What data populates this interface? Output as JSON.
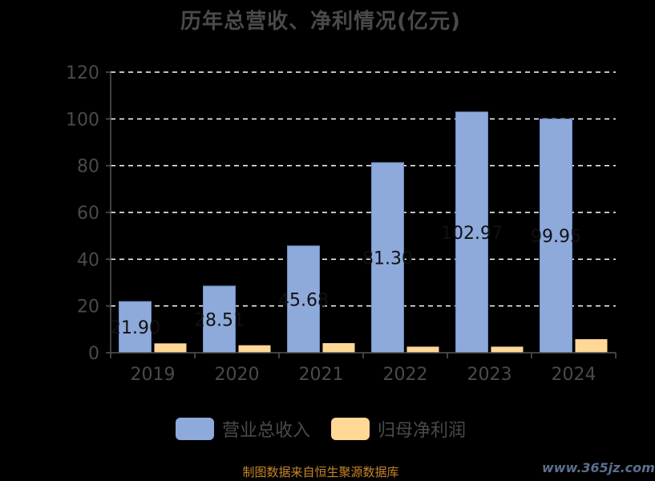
{
  "chart_data": {
    "type": "bar",
    "title": "历年总营收、净利情况(亿元)",
    "categories": [
      "2019",
      "2020",
      "2021",
      "2022",
      "2023",
      "2024"
    ],
    "series": [
      {
        "name": "营业总收入",
        "color": "#8eaadb",
        "values": [
          21.9,
          28.51,
          45.68,
          81.3,
          102.97,
          99.95
        ],
        "labels": [
          "21.90",
          "28.51",
          "45.68",
          "81.30",
          "102.97",
          "99.95"
        ]
      },
      {
        "name": "归母净利润",
        "color": "#ffd896",
        "values": [
          4.0,
          3.2,
          4.1,
          2.6,
          2.6,
          5.8
        ]
      }
    ],
    "yticks": [
      "0",
      "20",
      "40",
      "60",
      "80",
      "100",
      "120"
    ],
    "ylim": [
      0,
      120
    ],
    "grid": true,
    "legend": "bottom-center"
  },
  "footer": {
    "source": "制图数据来自恒生聚源数据库",
    "watermark": "www.365jz.com"
  }
}
